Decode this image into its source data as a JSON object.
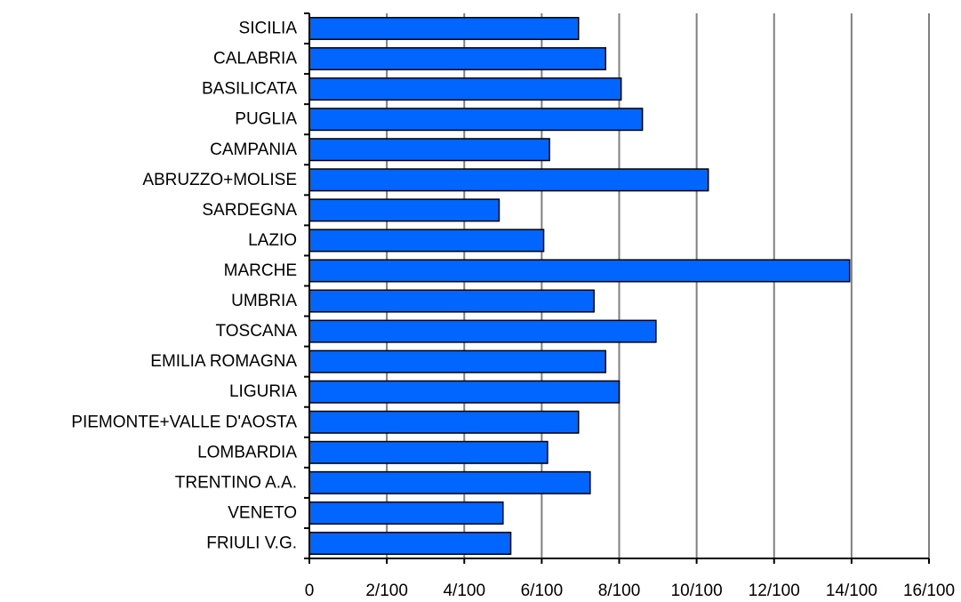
{
  "chart_data": {
    "type": "bar",
    "orientation": "horizontal",
    "categories": [
      "SICILIA",
      "CALABRIA",
      "BASILICATA",
      "PUGLIA",
      "CAMPANIA",
      "ABRUZZO+MOLISE",
      "SARDEGNA",
      "LAZIO",
      "MARCHE",
      "UMBRIA",
      "TOSCANA",
      "EMILIA ROMAGNA",
      "LIGURIA",
      "PIEMONTE+VALLE D'AOSTA",
      "LOMBARDIA",
      "TRENTINO A.A.",
      "VENETO",
      "FRIULI V.G."
    ],
    "values": [
      6.95,
      7.65,
      8.05,
      8.6,
      6.2,
      10.3,
      4.9,
      6.05,
      13.95,
      7.35,
      8.95,
      7.65,
      8.0,
      6.95,
      6.15,
      7.25,
      5.0,
      5.2
    ],
    "xlim": [
      0,
      16
    ],
    "x_ticks": [
      0,
      2,
      4,
      6,
      8,
      10,
      12,
      14,
      16
    ],
    "x_tick_labels": [
      "0",
      "2/100",
      "4/100",
      "6/100",
      "8/100",
      "10/100",
      "12/100",
      "14/100",
      "16/100"
    ],
    "grid": "vertical",
    "legend": "none",
    "bar_color": "#0066ff",
    "gridline_color": "#808080"
  }
}
